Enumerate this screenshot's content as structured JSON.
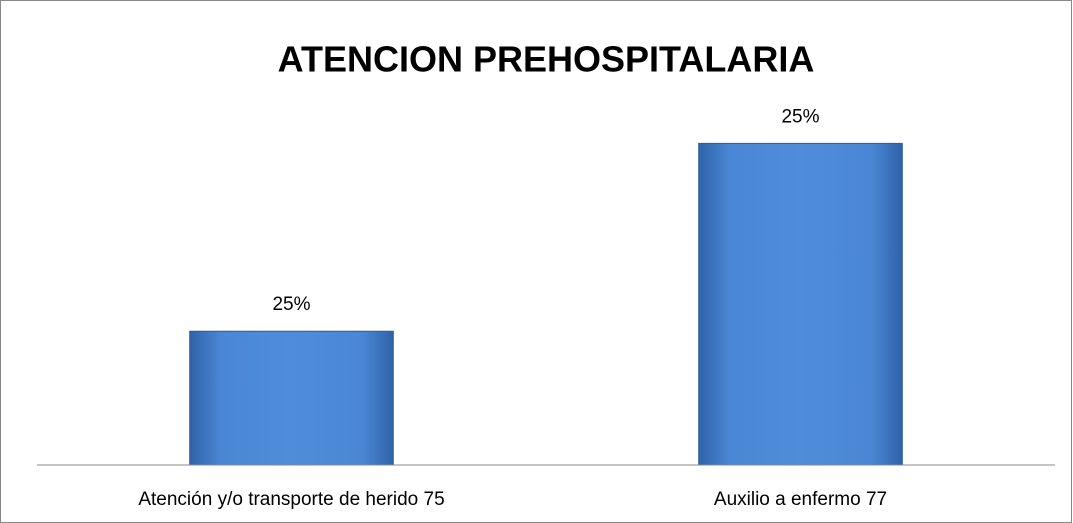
{
  "chart_data": {
    "type": "bar",
    "title": "ATENCION PREHOSPITALARIA",
    "categories": [
      "Atención y/o transporte de herido 75",
      "Auxilio a enfermo 77"
    ],
    "values": [
      24.67,
      25.33
    ],
    "value_labels": [
      "25%",
      "25%"
    ],
    "color": "#4a86d4",
    "ylim": [
      24.2,
      25.5
    ]
  }
}
